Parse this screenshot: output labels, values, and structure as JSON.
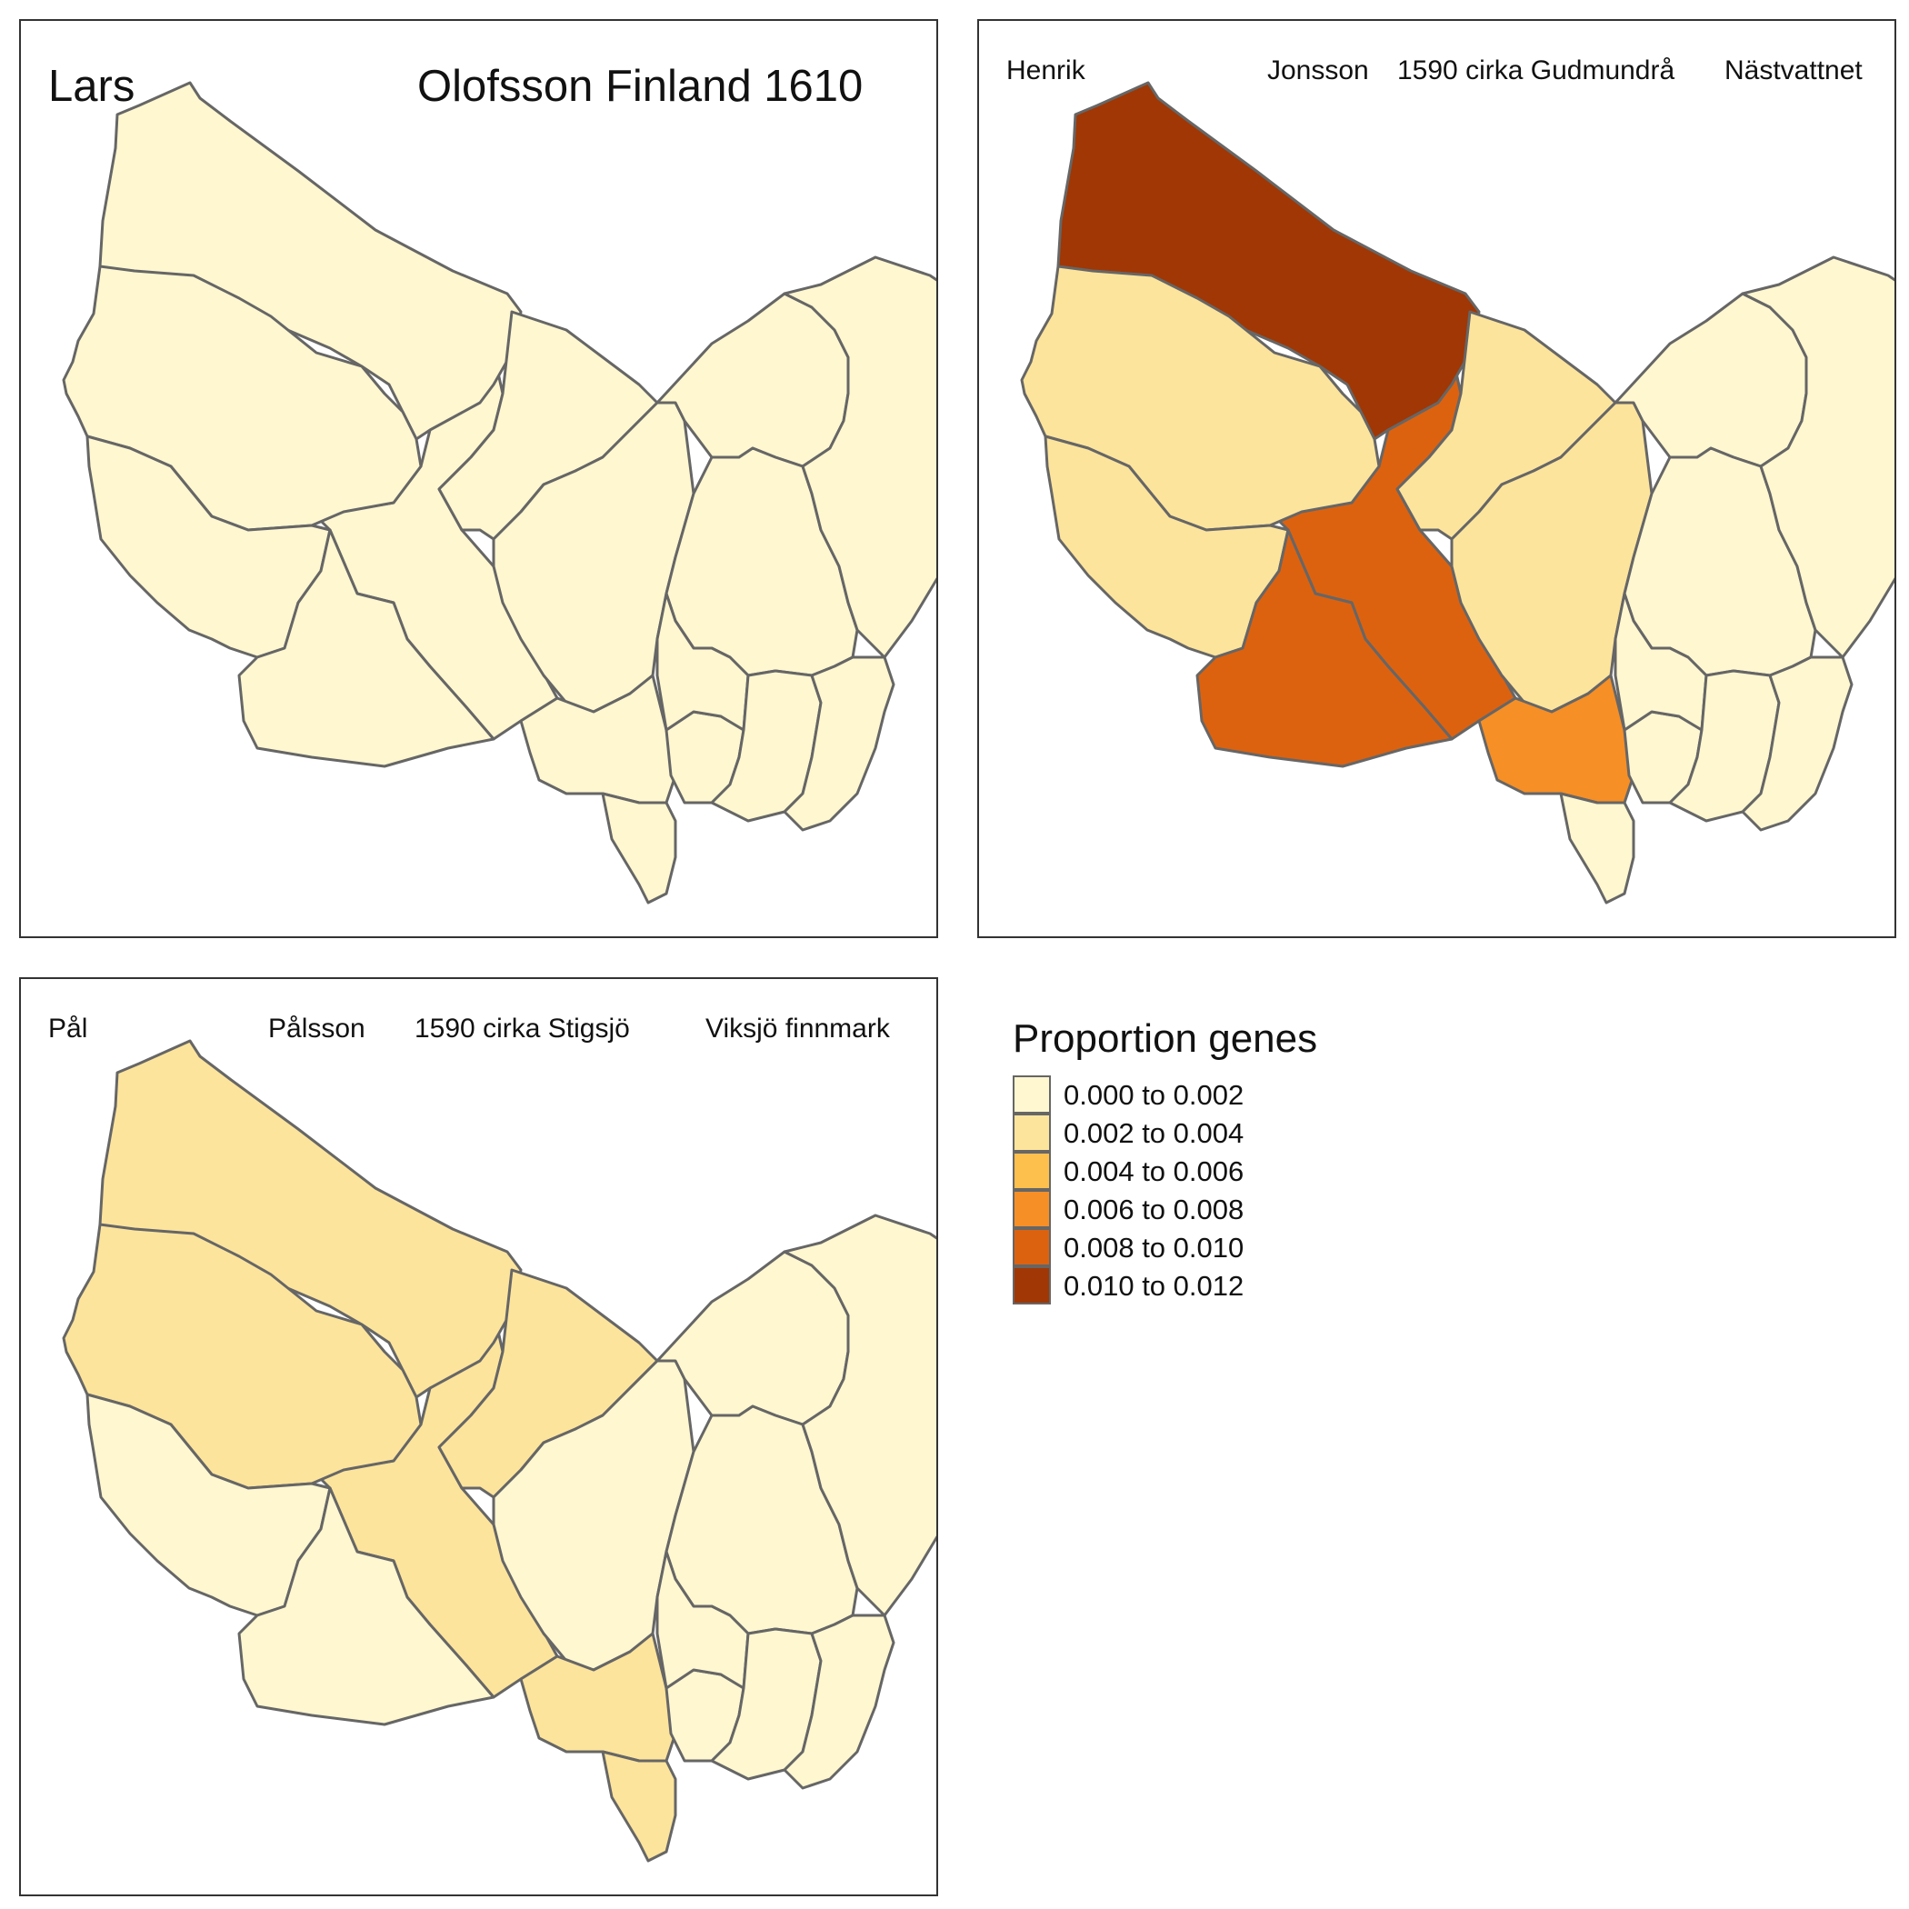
{
  "color_scale": [
    "#FFF7D0",
    "#FDE49C",
    "#FEC04C",
    "#F68F26",
    "#DC6210",
    "#A03704"
  ],
  "border_color": "#666666",
  "maps": [
    {
      "title_parts": [
        "Lars",
        "Olofsson Finland 1610"
      ],
      "region_classes": [
        0,
        0,
        0,
        0,
        0,
        0,
        0,
        0,
        0,
        0,
        0,
        0,
        0,
        0,
        0,
        0
      ]
    },
    {
      "title_parts": [
        "Henrik",
        "Jonsson",
        "1590 cirka Gudmundrå",
        "Nästvattnet"
      ],
      "region_classes": [
        4,
        5,
        1,
        1,
        4,
        1,
        1,
        0,
        0,
        0,
        3,
        0,
        0,
        0,
        0,
        0
      ]
    },
    {
      "title_parts": [
        "Pål",
        "Pålsson",
        "1590 cirka Stigsjö",
        "Viksjö finnmark"
      ],
      "region_classes": [
        1,
        1,
        1,
        0,
        0,
        1,
        0,
        0,
        0,
        0,
        1,
        1,
        0,
        0,
        0,
        0
      ]
    }
  ],
  "legend": {
    "title": "Proportion genes",
    "items": [
      "0.000 to 0.002",
      "0.002 to 0.004",
      "0.004 to 0.006",
      "0.006 to 0.008",
      "0.008 to 0.010",
      "0.010 to 0.012"
    ]
  }
}
